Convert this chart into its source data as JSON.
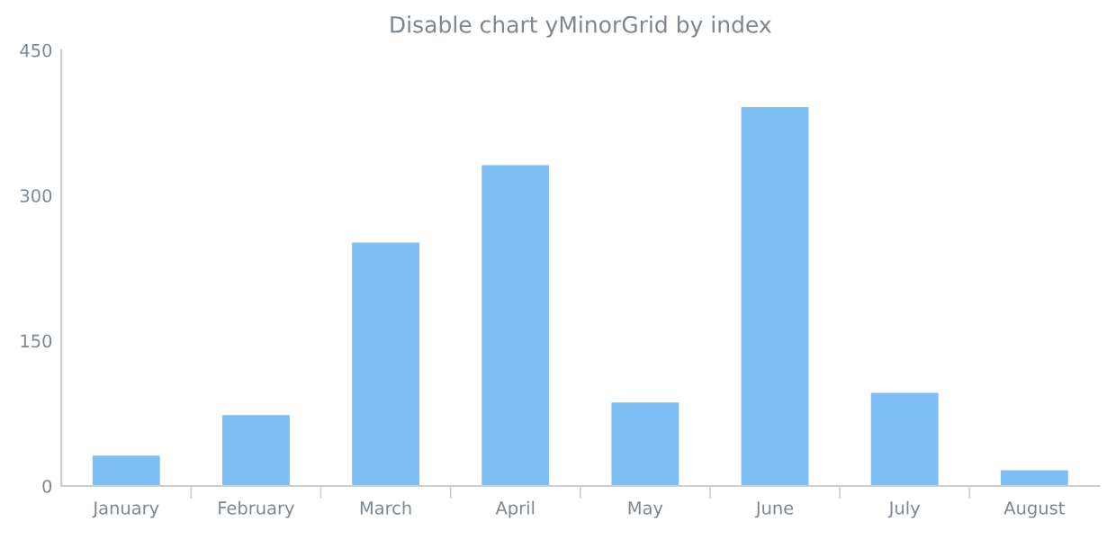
{
  "chart_data": {
    "type": "bar",
    "title": "Disable chart yMinorGrid by index",
    "categories": [
      "January",
      "February",
      "March",
      "April",
      "May",
      "June",
      "July",
      "August"
    ],
    "values": [
      30,
      72,
      250,
      330,
      85,
      390,
      95,
      15
    ],
    "color": "#7dbff5",
    "ylim": [
      0,
      450
    ],
    "yticks": [
      0,
      150,
      300,
      450
    ],
    "grid": false,
    "legend": false
  }
}
